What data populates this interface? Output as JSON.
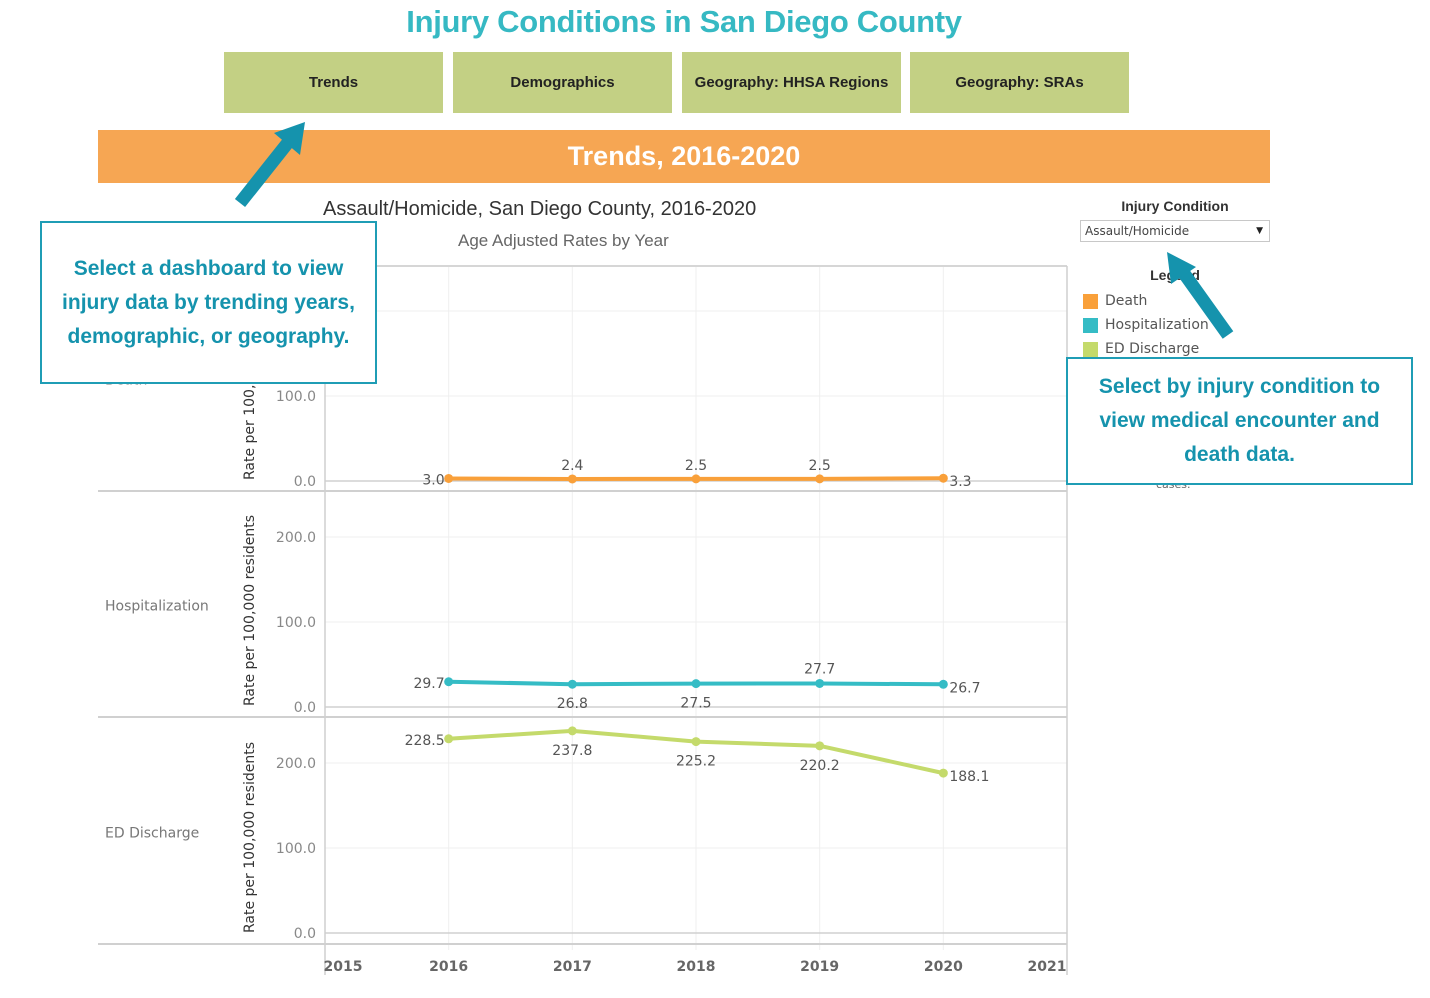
{
  "header": {
    "title": "Injury Conditions in San Diego County"
  },
  "nav": {
    "buttons": [
      {
        "label": "Trends",
        "active": true
      },
      {
        "label": "Demographics",
        "active": false
      },
      {
        "label": "Geography: HHSA Regions",
        "active": false
      },
      {
        "label": "Geography: SRAs",
        "active": false
      }
    ]
  },
  "banner": {
    "title": "Trends, 2016-2020"
  },
  "filter": {
    "label": "Injury Condition",
    "selected": "Assault/Homicide"
  },
  "legend": {
    "title": "Legend",
    "items": [
      {
        "label": "Death",
        "color": "#f9a03a"
      },
      {
        "label": "Hospitalization",
        "color": "#35bcc5"
      },
      {
        "label": "ED Discharge",
        "color": "#c4da6b"
      }
    ],
    "note": "cases."
  },
  "callouts": {
    "left": "Select a dashboard to view injury data by trending years, demographic, or geography.",
    "right": "Select by injury condition to view medical encounter and death data."
  },
  "colors": {
    "title_teal": "#36b9c3",
    "nav_green": "#c3d084",
    "banner_orange": "#f6a653",
    "callout_teal": "#1f9db5",
    "arrow_teal": "#1593ad"
  },
  "chart_data": {
    "type": "line",
    "title": "Assault/Homicide, San Diego County, 2016-2020",
    "subtitle": "Age Adjusted Rates by Year",
    "xlabel": "",
    "ylabel": "Rate per 100,000 residents",
    "x": [
      2016,
      2017,
      2018,
      2019,
      2020
    ],
    "xlim": [
      2015,
      2021
    ],
    "xticks": [
      "2015",
      "2016",
      "2017",
      "2018",
      "2019",
      "2020",
      "2021"
    ],
    "grid": true,
    "legend_position": "right",
    "panels": [
      {
        "name": "Death",
        "row_label": "Death",
        "ylabel": "Rate per 100,000 residents",
        "ylim": [
          0,
          250
        ],
        "yticks": [
          "0.0",
          "100.0"
        ],
        "ytick_values": [
          0,
          100
        ],
        "color": "#f9a03a",
        "values": [
          3.0,
          2.4,
          2.5,
          2.5,
          3.3
        ],
        "labels": [
          "3.0",
          "2.4",
          "2.5",
          "2.5",
          "3.3"
        ]
      },
      {
        "name": "Hospitalization",
        "row_label": "Hospitalization",
        "ylabel": "Rate per 100,000 residents",
        "ylim": [
          0,
          250
        ],
        "yticks": [
          "0.0",
          "100.0",
          "200.0"
        ],
        "ytick_values": [
          0,
          100,
          200
        ],
        "color": "#35bcc5",
        "values": [
          29.7,
          26.8,
          27.5,
          27.7,
          26.7
        ],
        "labels": [
          "29.7",
          "26.8",
          "27.5",
          "27.7",
          "26.7"
        ]
      },
      {
        "name": "ED Discharge",
        "row_label": "ED Discharge",
        "ylabel": "Rate per 100,000 residents",
        "ylim": [
          0,
          250
        ],
        "yticks": [
          "0.0",
          "100.0",
          "200.0"
        ],
        "ytick_values": [
          0,
          100,
          200
        ],
        "color": "#c4da6b",
        "values": [
          228.5,
          237.8,
          225.2,
          220.2,
          188.1
        ],
        "labels": [
          "228.5",
          "237.8",
          "225.2",
          "220.2",
          "188.1"
        ]
      }
    ]
  }
}
